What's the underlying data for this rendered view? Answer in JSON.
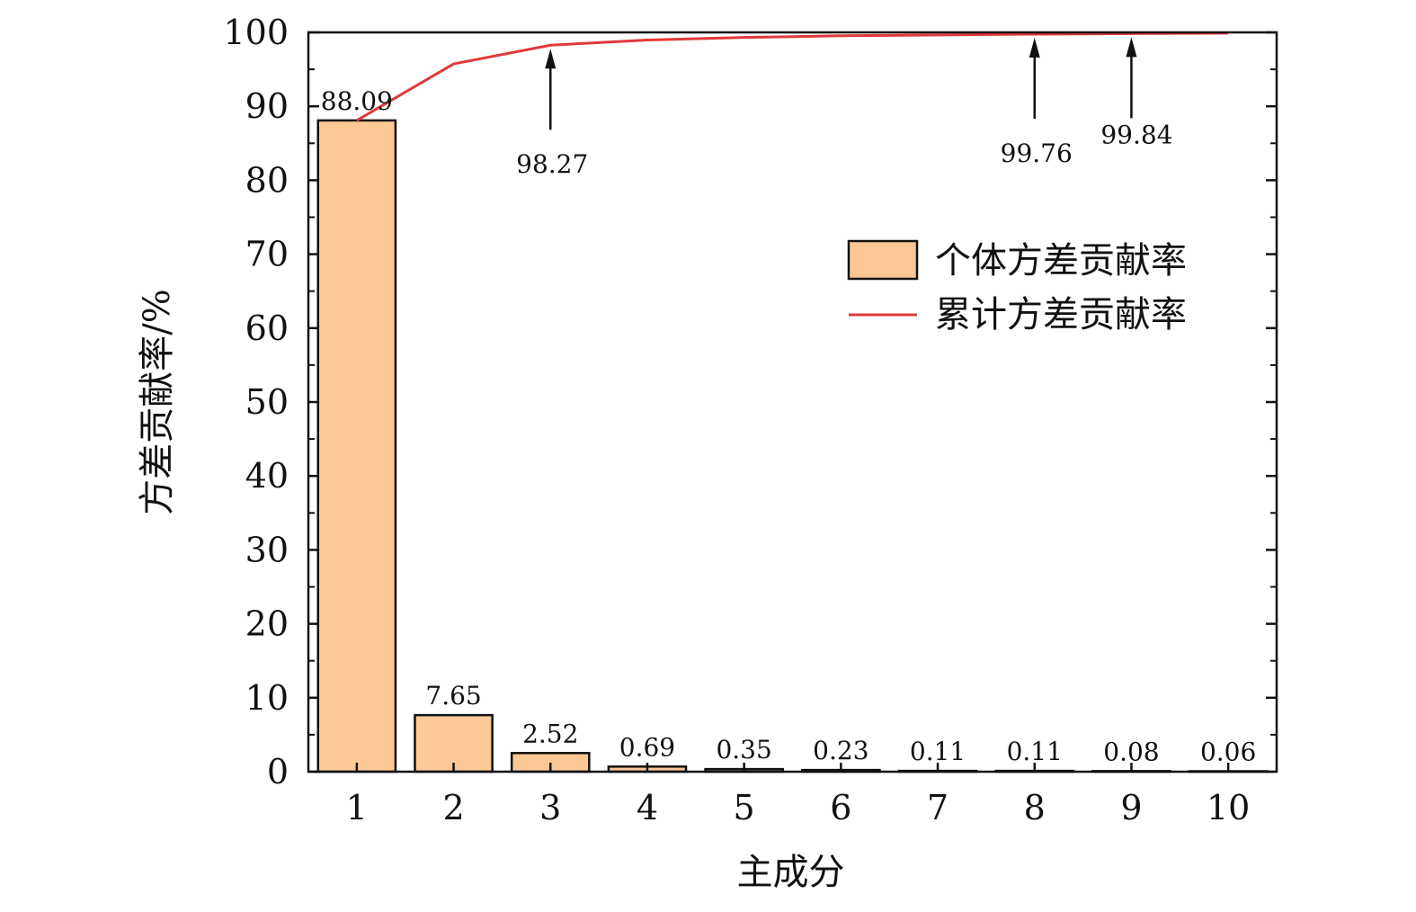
{
  "chart_data": {
    "type": "bar",
    "categories": [
      "1",
      "2",
      "3",
      "4",
      "5",
      "6",
      "7",
      "8",
      "9",
      "10"
    ],
    "series": [
      {
        "name": "个体方差贡献率",
        "type": "bar",
        "values": [
          88.09,
          7.65,
          2.52,
          0.69,
          0.35,
          0.23,
          0.11,
          0.11,
          0.08,
          0.06
        ],
        "color": "#FBC896"
      },
      {
        "name": "累计方差贡献率",
        "type": "line",
        "values": [
          88.09,
          95.74,
          98.27,
          98.96,
          99.31,
          99.54,
          99.65,
          99.76,
          99.84,
          99.9
        ],
        "color": "#E0393A"
      }
    ],
    "bar_labels": [
      "88.09",
      "7.65",
      "2.52",
      "0.69",
      "0.35",
      "0.23",
      "0.11",
      "0.11",
      "0.08",
      "0.06"
    ],
    "annotations": [
      {
        "category": "3",
        "value": 98.27,
        "text": "98.27"
      },
      {
        "category": "8",
        "value": 99.76,
        "text": "99.76"
      },
      {
        "category": "9",
        "value": 99.84,
        "text": "99.84"
      }
    ],
    "title": "",
    "xlabel": "主成分",
    "ylabel": "方差贡献率/%",
    "ylim": [
      0,
      100
    ],
    "yticks": [
      "0",
      "10",
      "20",
      "30",
      "40",
      "50",
      "60",
      "70",
      "80",
      "90",
      "100"
    ],
    "grid": false,
    "legend": "right"
  }
}
